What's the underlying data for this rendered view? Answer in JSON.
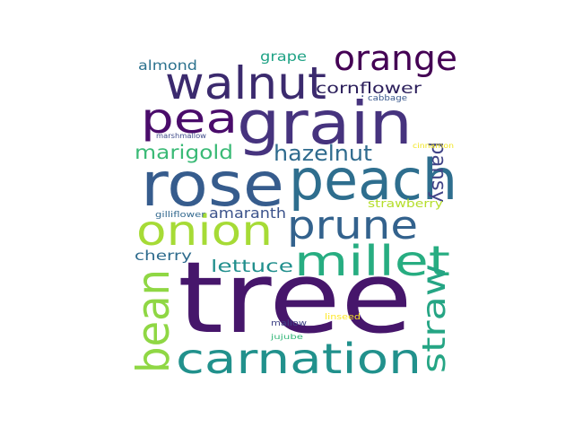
{
  "words": [
    {
      "id": "tree",
      "text": "tree",
      "color": "#46166b"
    },
    {
      "id": "grain",
      "text": "grain",
      "color": "#46337e"
    },
    {
      "id": "rose",
      "text": "rose",
      "color": "#365c8d"
    },
    {
      "id": "peach",
      "text": "peach",
      "color": "#2e6e8e"
    },
    {
      "id": "walnut",
      "text": "walnut",
      "color": "#3b2a6e"
    },
    {
      "id": "orange",
      "text": "orange",
      "color": "#440154"
    },
    {
      "id": "pea",
      "text": "pea",
      "color": "#4a0c6b"
    },
    {
      "id": "prune",
      "text": "prune",
      "color": "#33628d"
    },
    {
      "id": "onion",
      "text": "onion",
      "color": "#a6db36"
    },
    {
      "id": "millet",
      "text": "millet",
      "color": "#27ad81"
    },
    {
      "id": "bean",
      "text": "bean",
      "color": "#8fd744"
    },
    {
      "id": "carnation",
      "text": "carnation",
      "color": "#21918c"
    },
    {
      "id": "straw",
      "text": "straw",
      "color": "#25a584"
    },
    {
      "id": "pansy",
      "text": "pansy",
      "color": "#414487"
    },
    {
      "id": "hazelnut",
      "text": "hazelnut",
      "color": "#2f6b8e"
    },
    {
      "id": "marigold",
      "text": "marigold",
      "color": "#3aba76"
    },
    {
      "id": "cornflower",
      "text": "cornflower",
      "color": "#2b1e5b"
    },
    {
      "id": "lettuce",
      "text": "lettuce",
      "color": "#218f8d"
    },
    {
      "id": "amaranth",
      "text": "amaranth",
      "color": "#3b528b"
    },
    {
      "id": "almond",
      "text": "almond",
      "color": "#2c728e"
    },
    {
      "id": "grape",
      "text": "grape",
      "color": "#20a386"
    },
    {
      "id": "cherry",
      "text": "cherry",
      "color": "#2f6c8e"
    },
    {
      "id": "strawberry",
      "text": "strawberry",
      "color": "#b5de2b"
    },
    {
      "id": "cabbage",
      "text": "cabbage",
      "color": "#38588c"
    },
    {
      "id": "marshmallow",
      "text": "marshmallow",
      "color": "#3e4a89"
    },
    {
      "id": "cinnamon",
      "text": "cinnamon",
      "color": "#f1e51d"
    },
    {
      "id": "gilliflower",
      "text": "gilliflower",
      "color": "#31688e"
    },
    {
      "id": "mallow",
      "text": "mallow",
      "color": "#414487"
    },
    {
      "id": "linseed",
      "text": "linseed",
      "color": "#fde725"
    },
    {
      "id": "jujube",
      "text": "jujube",
      "color": "#35b779"
    },
    {
      "id": "tiny-dot",
      "text": "·",
      "color": "#3b528b"
    }
  ]
}
